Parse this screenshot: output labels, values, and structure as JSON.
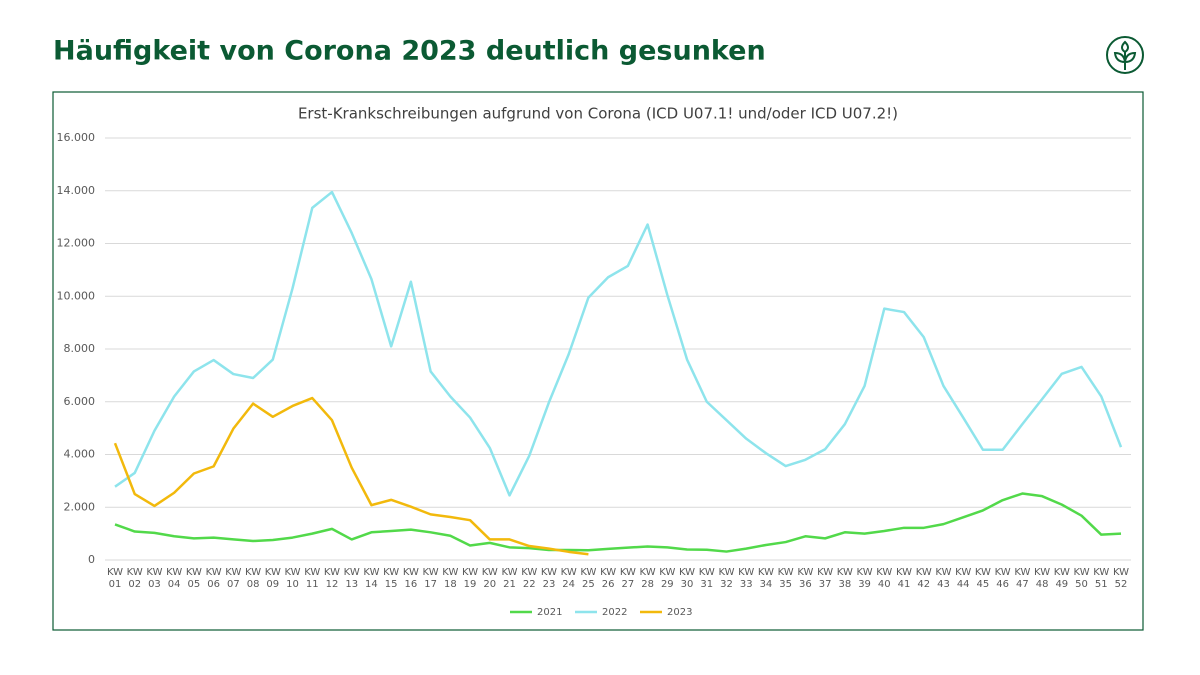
{
  "title": "Häufigkeit von Corona 2023 deutlich gesunken",
  "chart_data": {
    "type": "line",
    "title": "Erst-Krankschreibungen aufgrund von Corona (ICD U07.1! und/oder ICD U07.2!)",
    "categories": [
      "KW 01",
      "KW 02",
      "KW 03",
      "KW 04",
      "KW 05",
      "KW 06",
      "KW 07",
      "KW 08",
      "KW 09",
      "KW 10",
      "KW 11",
      "KW 12",
      "KW 13",
      "KW 14",
      "KW 15",
      "KW 16",
      "KW 17",
      "KW 18",
      "KW 19",
      "KW 20",
      "KW 21",
      "KW 22",
      "KW 23",
      "KW 24",
      "KW 25",
      "KW 26",
      "KW 27",
      "KW 28",
      "KW 29",
      "KW 30",
      "KW 31",
      "KW 32",
      "KW 33",
      "KW 34",
      "KW 35",
      "KW 36",
      "KW 37",
      "KW 38",
      "KW 39",
      "KW 40",
      "KW 41",
      "KW 42",
      "KW 43",
      "KW 44",
      "KW 45",
      "KW 46",
      "KW 47",
      "KW 48",
      "KW 49",
      "KW 50",
      "KW 51",
      "KW 52"
    ],
    "series": [
      {
        "name": "2021",
        "color": "#52d94a",
        "values": [
          1350,
          1080,
          1030,
          900,
          820,
          850,
          780,
          720,
          760,
          850,
          1000,
          1180,
          780,
          1050,
          1100,
          1150,
          1050,
          920,
          550,
          650,
          480,
          450,
          380,
          380,
          370,
          420,
          470,
          510,
          480,
          400,
          390,
          320,
          430,
          570,
          680,
          900,
          820,
          1050,
          1000,
          1100,
          1220,
          1220,
          1360,
          1620,
          1880,
          2270,
          2520,
          2420,
          2100,
          1680,
          960,
          1000
        ]
      },
      {
        "name": "2022",
        "color": "#8ee4ec",
        "values": [
          2780,
          3300,
          4900,
          6200,
          7150,
          7580,
          7050,
          6900,
          7600,
          10300,
          13350,
          13950,
          12400,
          10650,
          8100,
          10550,
          7150,
          6200,
          5400,
          4250,
          2450,
          3950,
          5980,
          7800,
          9950,
          10720,
          11150,
          12720,
          10050,
          7600,
          6000,
          5300,
          4600,
          4050,
          3560,
          3800,
          4200,
          5150,
          6600,
          9530,
          9400,
          8450,
          6600,
          5400,
          4180,
          4180,
          5150,
          6100,
          7060,
          7320,
          6200,
          4280
        ]
      },
      {
        "name": "2023",
        "color": "#f2b90c",
        "values": [
          4430,
          2500,
          2050,
          2550,
          3280,
          3550,
          4980,
          5930,
          5430,
          5840,
          6140,
          5300,
          3500,
          2080,
          2280,
          2020,
          1730,
          1630,
          1510,
          780,
          780,
          530,
          430,
          310,
          220,
          null,
          null,
          null,
          null,
          null,
          null,
          null,
          null,
          null,
          null,
          null,
          null,
          null,
          null,
          null,
          null,
          null,
          null,
          null,
          null,
          null,
          null,
          null,
          null,
          null,
          null,
          null
        ]
      }
    ],
    "ylim": [
      0,
      16000
    ],
    "yticks": [
      0,
      {
        "value": 2000,
        "label": "2.000"
      },
      {
        "value": 4000,
        "label": "4.000"
      },
      {
        "value": 6000,
        "label": "6.000"
      },
      {
        "value": 8000,
        "label": "8.000"
      },
      {
        "value": 10000,
        "label": "10.000"
      },
      {
        "value": 12000,
        "label": "12.000"
      },
      {
        "value": 14000,
        "label": "14.000"
      },
      {
        "value": 16000,
        "label": "16.000"
      }
    ],
    "grid": true,
    "legend": "bottom"
  }
}
